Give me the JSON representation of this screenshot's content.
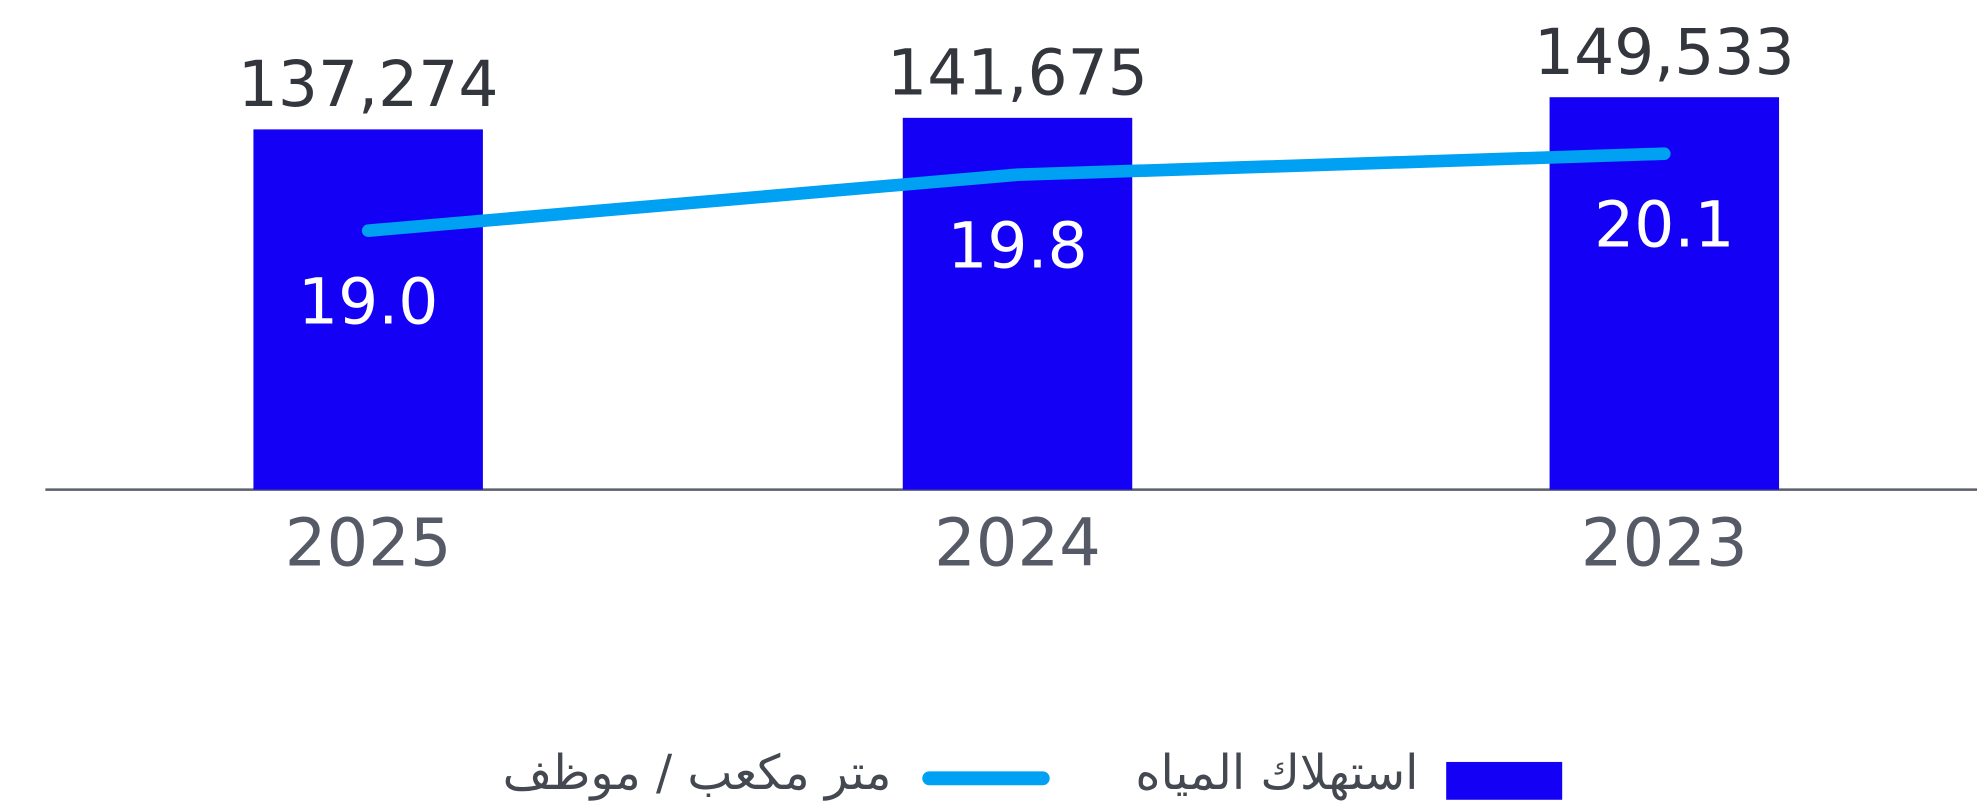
{
  "chart_data": {
    "type": "bar",
    "categories": [
      "2025",
      "2024",
      "2023"
    ],
    "series": [
      {
        "name": "استهلاك المياه",
        "color": "#1400f5",
        "values": [
          137274,
          141675,
          149533
        ],
        "value_labels": [
          "137,274",
          "141,675",
          "149,533"
        ]
      },
      {
        "name": "متر مكعب / موظف",
        "color": "#00a0f2",
        "type": "line",
        "axis": "y2",
        "values": [
          19.0,
          19.8,
          20.1
        ],
        "value_labels": [
          "19.0",
          "19.8",
          "20.1"
        ]
      }
    ],
    "ylim": [
      0,
      160000
    ],
    "y2lim": [
      15.3,
      21.3
    ],
    "grid": false,
    "legend": "bottom"
  }
}
